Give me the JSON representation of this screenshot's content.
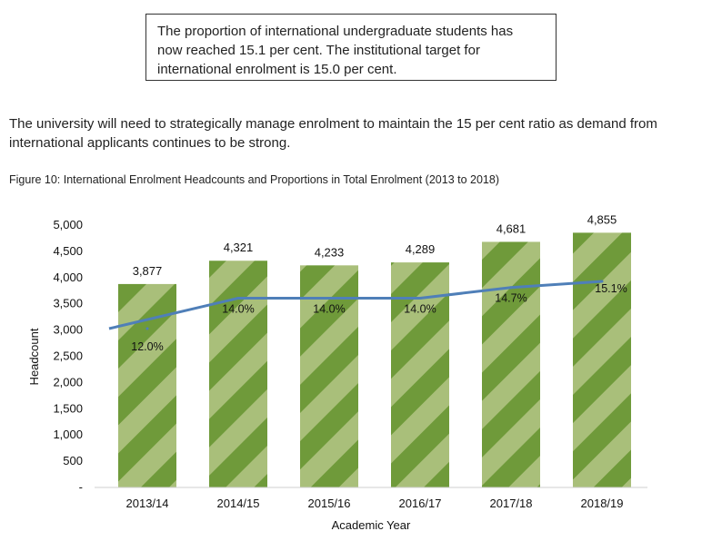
{
  "callout": {
    "lines": [
      "The proportion of international undergraduate students has",
      "now reached 15.1 per cent. The institutional target for",
      "international enrolment is 15.0 per cent."
    ]
  },
  "paragraph": {
    "lines": [
      "The university will need to strategically manage enrolment to maintain the 15 per cent ratio as demand from",
      "international applicants continues to be strong."
    ]
  },
  "figure_title": "Figure 10: International Enrolment Headcounts and Proportions in Total Enrolment (2013 to 2018)",
  "colors": {
    "bar_dark": "#6f9a3a",
    "bar_light": "#a9bf7a",
    "line": "#4f7fb8"
  },
  "chart_data": {
    "type": "bar",
    "categories": [
      "2013/14",
      "2014/15",
      "2015/16",
      "2016/17",
      "2017/18",
      "2018/19"
    ],
    "series": [
      {
        "values": [
          3877,
          4321,
          4233,
          4289,
          4681,
          4855
        ],
        "labels": [
          "3,877",
          "4,321",
          "4,233",
          "4,289",
          "4,681",
          "4,855"
        ]
      },
      {
        "type": "line",
        "values": [
          12.0,
          14.0,
          14.0,
          14.0,
          14.7,
          15.1
        ],
        "labels": [
          "12.0%",
          "14.0%",
          "14.0%",
          "14.0%",
          "14.7%",
          "15.1%"
        ]
      }
    ],
    "xlabel": "Academic Year",
    "ylabel": "Headcount",
    "ylim": [
      0,
      5000
    ],
    "yticks": [
      "-",
      "500",
      "1,000",
      "1,500",
      "2,000",
      "2,500",
      "3,000",
      "3,500",
      "4,000",
      "4,500",
      "5,000"
    ],
    "grid": false,
    "legend": "none"
  }
}
